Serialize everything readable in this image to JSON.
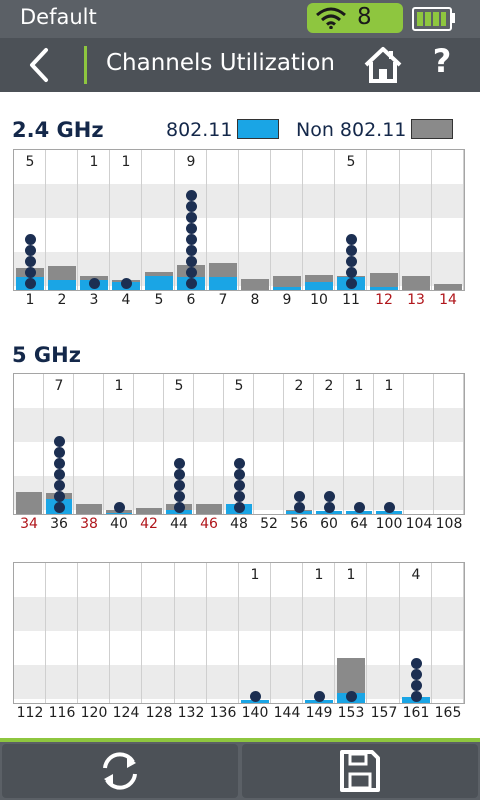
{
  "status": {
    "profile": "Default",
    "wifi_count": "8"
  },
  "header": {
    "title": "Channels Utilization"
  },
  "legend": {
    "wifi_label": "802.11",
    "non_wifi_label": "Non 802.11",
    "wifi_color": "#1aa5e5",
    "non_wifi_color": "#8a8a8a"
  },
  "band24": {
    "label": "2.4 GHz",
    "channels": [
      {
        "ch": "1",
        "count": "5",
        "wifi": 0.09,
        "non": 0.16,
        "dots": 5,
        "red": false
      },
      {
        "ch": "2",
        "count": "",
        "wifi": 0.07,
        "non": 0.17,
        "dots": 0,
        "red": false
      },
      {
        "ch": "3",
        "count": "1",
        "wifi": 0.07,
        "non": 0.1,
        "dots": 1,
        "red": false
      },
      {
        "ch": "4",
        "count": "1",
        "wifi": 0.06,
        "non": 0.07,
        "dots": 1,
        "red": false
      },
      {
        "ch": "5",
        "count": "",
        "wifi": 0.1,
        "non": 0.13,
        "dots": 0,
        "red": false
      },
      {
        "ch": "6",
        "count": "9",
        "wifi": 0.09,
        "non": 0.18,
        "dots": 9,
        "red": false
      },
      {
        "ch": "7",
        "count": "",
        "wifi": 0.09,
        "non": 0.19,
        "dots": 0,
        "red": false
      },
      {
        "ch": "8",
        "count": "",
        "wifi": 0.0,
        "non": 0.08,
        "dots": 0,
        "red": false
      },
      {
        "ch": "9",
        "count": "",
        "wifi": 0.02,
        "non": 0.1,
        "dots": 0,
        "red": false
      },
      {
        "ch": "10",
        "count": "",
        "wifi": 0.06,
        "non": 0.11,
        "dots": 0,
        "red": false
      },
      {
        "ch": "11",
        "count": "5",
        "wifi": 0.09,
        "non": 0.1,
        "dots": 5,
        "red": false
      },
      {
        "ch": "12",
        "count": "",
        "wifi": 0.02,
        "non": 0.12,
        "dots": 0,
        "red": true
      },
      {
        "ch": "13",
        "count": "",
        "wifi": 0.0,
        "non": 0.1,
        "dots": 0,
        "red": true
      },
      {
        "ch": "14",
        "count": "",
        "wifi": 0.0,
        "non": 0.04,
        "dots": 0,
        "red": true
      }
    ]
  },
  "band5": {
    "label": "5 GHz",
    "row1": [
      {
        "ch": "34",
        "count": "",
        "wifi": 0.0,
        "non": 0.16,
        "dots": 0,
        "red": true
      },
      {
        "ch": "36",
        "count": "7",
        "wifi": 0.11,
        "non": 0.15,
        "dots": 7,
        "red": false
      },
      {
        "ch": "38",
        "count": "",
        "wifi": 0.0,
        "non": 0.07,
        "dots": 0,
        "red": true
      },
      {
        "ch": "40",
        "count": "1",
        "wifi": 0.01,
        "non": 0.03,
        "dots": 1,
        "red": false
      },
      {
        "ch": "42",
        "count": "",
        "wifi": 0.0,
        "non": 0.04,
        "dots": 0,
        "red": true
      },
      {
        "ch": "44",
        "count": "5",
        "wifi": 0.03,
        "non": 0.07,
        "dots": 5,
        "red": false
      },
      {
        "ch": "46",
        "count": "",
        "wifi": 0.0,
        "non": 0.07,
        "dots": 0,
        "red": true
      },
      {
        "ch": "48",
        "count": "5",
        "wifi": 0.07,
        "non": 0.07,
        "dots": 5,
        "red": false
      },
      {
        "ch": "52",
        "count": "",
        "wifi": 0.0,
        "non": 0.0,
        "dots": 0,
        "red": false
      },
      {
        "ch": "56",
        "count": "2",
        "wifi": 0.02,
        "non": 0.03,
        "dots": 2,
        "red": false
      },
      {
        "ch": "60",
        "count": "2",
        "wifi": 0.02,
        "non": 0.02,
        "dots": 2,
        "red": false
      },
      {
        "ch": "64",
        "count": "1",
        "wifi": 0.02,
        "non": 0.02,
        "dots": 1,
        "red": false
      },
      {
        "ch": "100",
        "count": "1",
        "wifi": 0.02,
        "non": 0.02,
        "dots": 1,
        "red": false
      },
      {
        "ch": "104",
        "count": "",
        "wifi": 0.0,
        "non": 0.0,
        "dots": 0,
        "red": false
      },
      {
        "ch": "108",
        "count": "",
        "wifi": 0.0,
        "non": 0.0,
        "dots": 0,
        "red": false
      }
    ],
    "row2": [
      {
        "ch": "112",
        "count": "",
        "wifi": 0.0,
        "non": 0.0,
        "dots": 0,
        "red": false
      },
      {
        "ch": "116",
        "count": "",
        "wifi": 0.0,
        "non": 0.0,
        "dots": 0,
        "red": false
      },
      {
        "ch": "120",
        "count": "",
        "wifi": 0.0,
        "non": 0.0,
        "dots": 0,
        "red": false
      },
      {
        "ch": "124",
        "count": "",
        "wifi": 0.0,
        "non": 0.0,
        "dots": 0,
        "red": false
      },
      {
        "ch": "128",
        "count": "",
        "wifi": 0.0,
        "non": 0.0,
        "dots": 0,
        "red": false
      },
      {
        "ch": "132",
        "count": "",
        "wifi": 0.0,
        "non": 0.0,
        "dots": 0,
        "red": false
      },
      {
        "ch": "136",
        "count": "",
        "wifi": 0.0,
        "non": 0.0,
        "dots": 0,
        "red": false
      },
      {
        "ch": "140",
        "count": "1",
        "wifi": 0.02,
        "non": 0.02,
        "dots": 1,
        "red": false
      },
      {
        "ch": "144",
        "count": "",
        "wifi": 0.0,
        "non": 0.0,
        "dots": 0,
        "red": false
      },
      {
        "ch": "149",
        "count": "1",
        "wifi": 0.02,
        "non": 0.02,
        "dots": 1,
        "red": false
      },
      {
        "ch": "153",
        "count": "1",
        "wifi": 0.07,
        "non": 0.32,
        "dots": 1,
        "red": false
      },
      {
        "ch": "157",
        "count": "",
        "wifi": 0.0,
        "non": 0.0,
        "dots": 0,
        "red": false
      },
      {
        "ch": "161",
        "count": "4",
        "wifi": 0.04,
        "non": 0.04,
        "dots": 4,
        "red": false
      },
      {
        "ch": "165",
        "count": "",
        "wifi": 0.0,
        "non": 0.0,
        "dots": 0,
        "red": false
      }
    ]
  },
  "footer": {
    "refresh_icon": "refresh-icon",
    "save_icon": "save-icon"
  }
}
